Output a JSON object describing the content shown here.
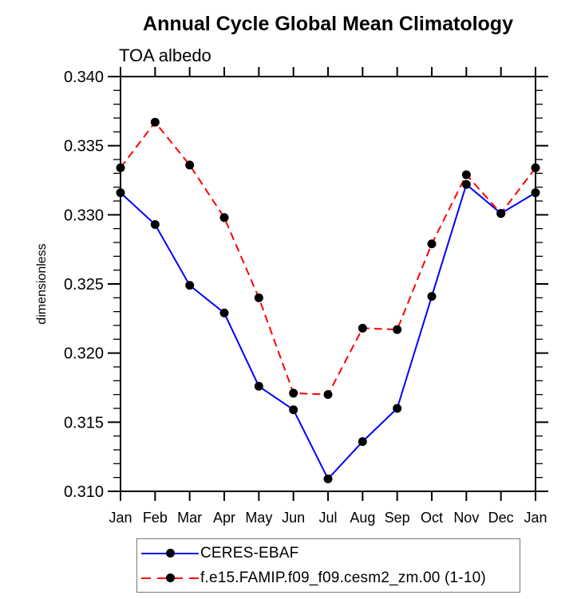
{
  "chart_data": {
    "type": "line",
    "title": "Annual Cycle Global Mean Climatology",
    "subtitle": "TOA albedo",
    "ylabel": "dimensionless",
    "xlabel": "",
    "categories": [
      "Jan",
      "Feb",
      "Mar",
      "Apr",
      "May",
      "Jun",
      "Jul",
      "Aug",
      "Sep",
      "Oct",
      "Nov",
      "Dec",
      "Jan"
    ],
    "ylim": [
      0.31,
      0.34
    ],
    "y_major_step": 0.005,
    "y_minor_step": 0.001,
    "y_tick_labels": [
      "0.310",
      "0.315",
      "0.320",
      "0.325",
      "0.330",
      "0.335",
      "0.340"
    ],
    "grid": false,
    "legend_position": "bottom",
    "marker": "filled-black-circle",
    "marker_color": "#000000",
    "series": [
      {
        "name": "CERES-EBAF",
        "color": "#0000ff",
        "line_style": "solid",
        "values": [
          0.3316,
          0.3293,
          0.3249,
          0.3229,
          0.3176,
          0.3159,
          0.3109,
          0.3136,
          0.316,
          0.3241,
          0.3322,
          0.3301,
          0.3316
        ]
      },
      {
        "name": "f.e15.FAMIP.f09_f09.cesm2_zm.00 (1-10)",
        "color": "#ff0000",
        "line_style": "dashed",
        "values": [
          0.3334,
          0.3367,
          0.3336,
          0.3298,
          0.324,
          0.3171,
          0.317,
          0.3218,
          0.3217,
          0.3279,
          0.3329,
          0.3301,
          0.3334
        ]
      }
    ]
  }
}
